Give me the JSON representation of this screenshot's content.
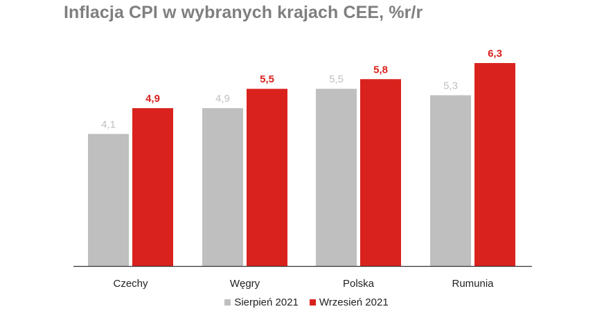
{
  "chart_data": {
    "type": "bar",
    "title": "Inflacja CPI w wybranych krajach CEE, %r/r",
    "categories": [
      "Czechy",
      "Węgry",
      "Polska",
      "Rumunia"
    ],
    "series": [
      {
        "name": "Sierpień 2021",
        "values": [
          4.1,
          4.9,
          5.5,
          5.3
        ],
        "color": "#bfbfbf",
        "label_color": "#bfbfbf"
      },
      {
        "name": "Wrzesień 2021",
        "values": [
          4.9,
          5.5,
          5.8,
          6.3
        ],
        "color": "#d9221d",
        "label_color": "#d9221d"
      }
    ],
    "data_labels": [
      [
        "4,1",
        "4,9",
        "5,5",
        "5,3"
      ],
      [
        "4,9",
        "5,5",
        "5,8",
        "6,3"
      ]
    ],
    "ylim": [
      0,
      6.3
    ],
    "grid": false,
    "legend_position": "bottom-center"
  }
}
